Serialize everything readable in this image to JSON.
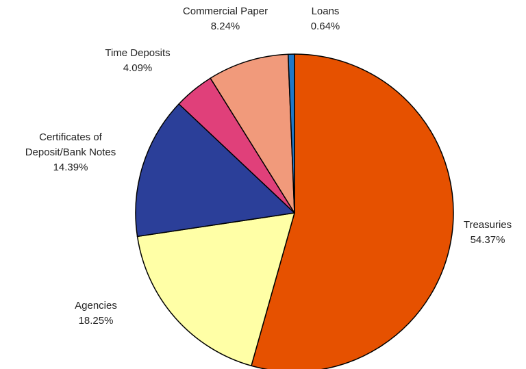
{
  "chart_data": {
    "type": "pie",
    "title": "",
    "start_angle_deg": 0,
    "direction": "clockwise",
    "slices": [
      {
        "label": "Treasuries",
        "percent_text": "54.37%",
        "value": 54.37,
        "color": "#E65100"
      },
      {
        "label": "Agencies",
        "percent_text": "18.25%",
        "value": 18.25,
        "color": "#FFFFA6"
      },
      {
        "label": "Certificates of Deposit/Bank Notes",
        "label_lines": [
          "Certificates of",
          "Deposit/Bank Notes"
        ],
        "percent_text": "14.39%",
        "value": 14.39,
        "color": "#2B3F99"
      },
      {
        "label": "Time Deposits",
        "percent_text": "4.09%",
        "value": 4.09,
        "color": "#E0407A"
      },
      {
        "label": "Commercial Paper",
        "percent_text": "8.24%",
        "value": 8.24,
        "color": "#F19A7B"
      },
      {
        "label": "Loans",
        "percent_text": "0.64%",
        "value": 0.64,
        "color": "#1F78C8"
      }
    ],
    "legend": "none",
    "slice_outline_color": "#000000"
  }
}
